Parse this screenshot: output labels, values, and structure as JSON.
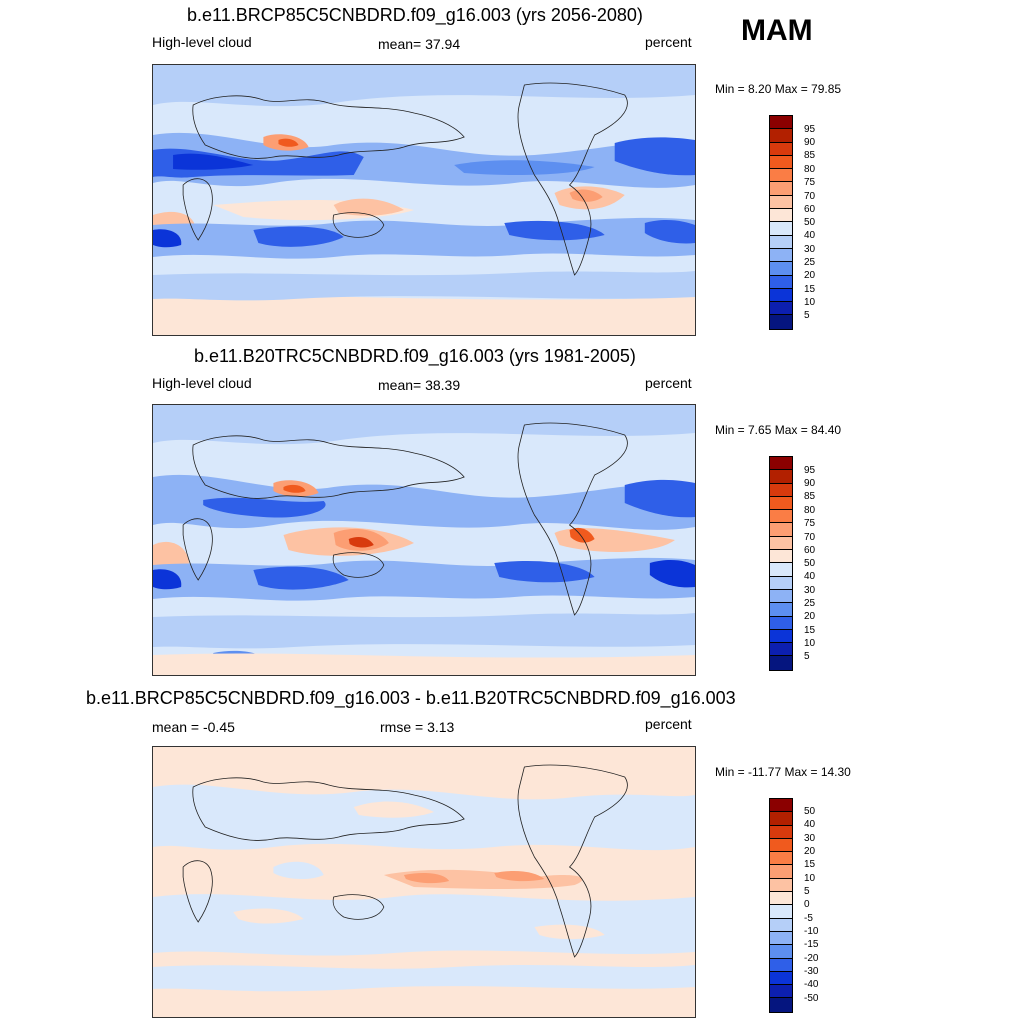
{
  "season": "MAM",
  "panels": [
    {
      "title": "b.e11.BRCP85C5CNBDRD.f09_g16.003 (yrs 2056-2080)",
      "left_label": "High-level cloud",
      "center_label": "mean=  37.94",
      "units": "percent",
      "minmax": "Min =   8.20 Max =  79.85",
      "colorbar_labels": [
        "95",
        "90",
        "85",
        "80",
        "75",
        "70",
        "60",
        "50",
        "40",
        "30",
        "25",
        "20",
        "15",
        "10",
        "5"
      ]
    },
    {
      "title": "b.e11.B20TRC5CNBDRD.f09_g16.003 (yrs 1981-2005)",
      "left_label": "High-level cloud",
      "center_label": "mean=  38.39",
      "units": "percent",
      "minmax": "Min =   7.65 Max =  84.40",
      "colorbar_labels": [
        "95",
        "90",
        "85",
        "80",
        "75",
        "70",
        "60",
        "50",
        "40",
        "30",
        "25",
        "20",
        "15",
        "10",
        "5"
      ]
    },
    {
      "title": "b.e11.BRCP85C5CNBDRD.f09_g16.003 - b.e11.B20TRC5CNBDRD.f09_g16.003",
      "left_label": "mean =  -0.45",
      "center_label": "rmse =   3.13",
      "units": "percent",
      "minmax": "Min = -11.77 Max =  14.30",
      "colorbar_labels": [
        "50",
        "40",
        "30",
        "20",
        "15",
        "10",
        "5",
        "0",
        "-5",
        "-10",
        "-15",
        "-20",
        "-30",
        "-40",
        "-50"
      ]
    }
  ],
  "colors": {
    "scale": [
      "#8b0000",
      "#b22000",
      "#d83a0d",
      "#f05a1e",
      "#fa7d45",
      "#fc9e73",
      "#fdc2a3",
      "#fde6d7",
      "#d9e8fb",
      "#b5cff8",
      "#8db2f5",
      "#5d8ff0",
      "#2f5fe8",
      "#0b34d8",
      "#0c1fb0",
      "#05157f"
    ]
  }
}
